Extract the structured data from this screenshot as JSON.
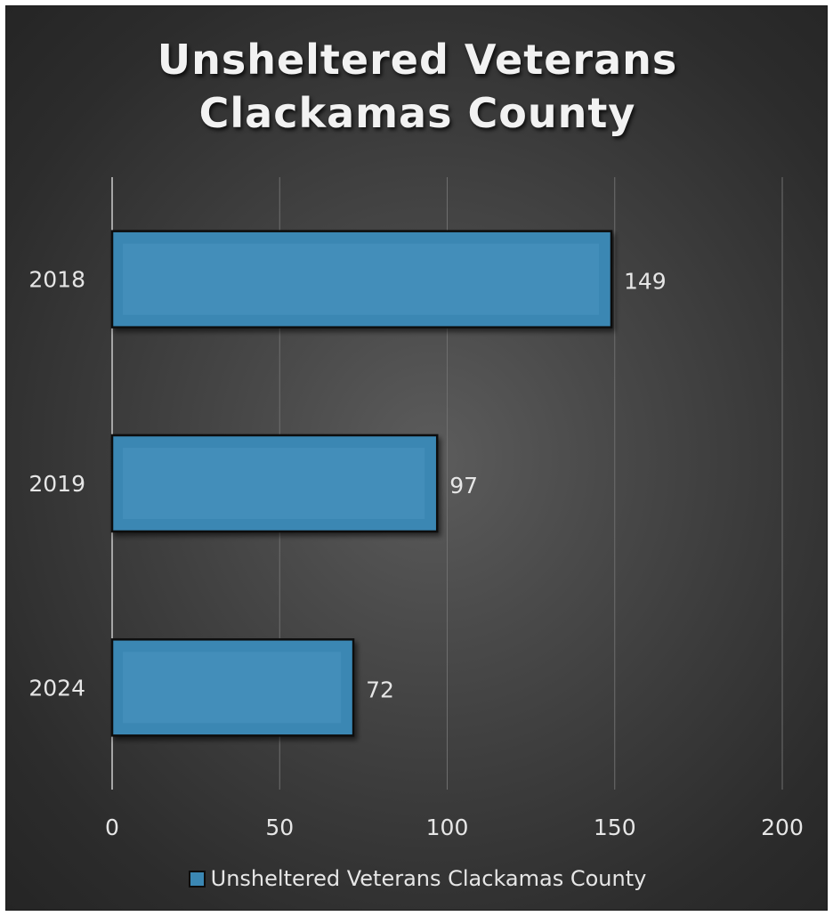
{
  "chart_data": {
    "type": "bar",
    "orientation": "horizontal",
    "title": "Unsheltered Veterans Clackamas County",
    "title_lines": [
      "Unsheltered Veterans",
      "Clackamas County"
    ],
    "categories": [
      "2018",
      "2019",
      "2024"
    ],
    "series": [
      {
        "name": "Unsheltered Veterans Clackamas County",
        "values": [
          149,
          97,
          72
        ],
        "data_labels": [
          "149",
          "97",
          "72"
        ]
      }
    ],
    "xlim": [
      0,
      200
    ],
    "x_ticks": [
      0,
      50,
      100,
      150,
      200
    ],
    "x_tick_labels": [
      "0",
      "50",
      "100",
      "150",
      "200"
    ],
    "xlabel": "",
    "ylabel": "",
    "grid": true,
    "legend_position": "bottom",
    "colors": {
      "bar_fill": "#3b87b3",
      "bar_inner": "#4a94c0",
      "bar_border": "#0d0d0d",
      "background": "#3a3a3a",
      "text": "#e6e6e6",
      "gridline": "#6e6e6e"
    }
  }
}
